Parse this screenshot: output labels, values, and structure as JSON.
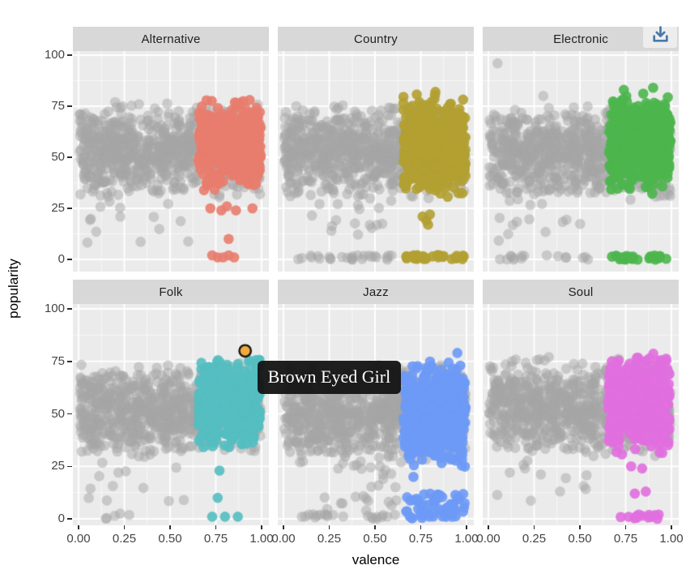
{
  "toolbar": {
    "download_icon_color": "#4779A9"
  },
  "tooltip": {
    "text": "Brown Eyed Girl",
    "bg": "#131313",
    "fg": "#ffffff"
  },
  "chart_data": {
    "type": "scatter",
    "title": "",
    "xlabel": "valence",
    "ylabel": "popularity",
    "xlim": [
      0,
      1
    ],
    "ylim": [
      0,
      100
    ],
    "grid": true,
    "legend": "none",
    "x_ticks": {
      "values": [
        0,
        0.25,
        0.5,
        0.75,
        1
      ],
      "labels": [
        "0.00",
        "0.25",
        "0.50",
        "0.75",
        "1.00"
      ]
    },
    "y_ticks": {
      "values": [
        100,
        75,
        50,
        25,
        0
      ],
      "labels": [
        "100",
        "75",
        "50",
        "25",
        "0"
      ]
    },
    "colors": {
      "panel_bg": "#EBEBEB",
      "strip_bg": "#D8D8D8",
      "grid_major": "#FFFFFF",
      "grid_minor": "#FFFFFF",
      "background_points": "#A6A6A6"
    },
    "facets": [
      {
        "label": "Alternative",
        "color": "#E87D6E",
        "clusters": [
          {
            "kind": "gray",
            "type": "cloud",
            "x": [
              0.005,
              0.995
            ],
            "yc": 53,
            "yh": 24,
            "n": 850
          },
          {
            "kind": "gray",
            "type": "scatter",
            "x": [
              0.02,
              0.62
            ],
            "y": [
              6,
              29
            ],
            "n": 14
          },
          {
            "kind": "gray",
            "type": "points",
            "pts": [
              [
                0.2,
                77
              ],
              [
                0.24,
                75
              ],
              [
                0.33,
                76
              ]
            ]
          },
          {
            "kind": "color",
            "type": "cloud",
            "x": [
              0.655,
              0.995
            ],
            "yc": 56,
            "yh": 24,
            "n": 440
          },
          {
            "kind": "color",
            "type": "points",
            "pts": [
              [
                0.72,
                25
              ],
              [
                0.78,
                24
              ],
              [
                0.81,
                26
              ],
              [
                0.86,
                24
              ],
              [
                0.95,
                25
              ],
              [
                0.82,
                10
              ],
              [
                0.73,
                2
              ],
              [
                0.76,
                1
              ],
              [
                0.79,
                1
              ],
              [
                0.82,
                2
              ],
              [
                0.85,
                1
              ]
            ]
          }
        ]
      },
      {
        "label": "Country",
        "color": "#B3A032",
        "clusters": [
          {
            "kind": "gray",
            "type": "cloud",
            "x": [
              0.005,
              0.995
            ],
            "yc": 53,
            "yh": 24,
            "n": 850
          },
          {
            "kind": "gray",
            "type": "scatter",
            "x": [
              0.1,
              0.62
            ],
            "y": [
              12,
              29
            ],
            "n": 16
          },
          {
            "kind": "gray",
            "type": "line",
            "x": [
              0.04,
              0.6
            ],
            "y": 1,
            "n": 26
          },
          {
            "kind": "gray",
            "type": "points",
            "pts": [
              [
                0.07,
                75
              ]
            ]
          },
          {
            "kind": "color",
            "type": "cloud",
            "x": [
              0.655,
              0.995
            ],
            "yc": 56,
            "yh": 26,
            "n": 460
          },
          {
            "kind": "color",
            "type": "points",
            "pts": [
              [
                0.76,
                21
              ],
              [
                0.78,
                19
              ],
              [
                0.8,
                22
              ],
              [
                0.79,
                17
              ],
              [
                0.83,
                82
              ]
            ]
          },
          {
            "kind": "color",
            "type": "line",
            "x": [
              0.66,
              0.99
            ],
            "y": 1,
            "n": 34
          }
        ]
      },
      {
        "label": "Electronic",
        "color": "#4CB64E",
        "clusters": [
          {
            "kind": "gray",
            "type": "cloud",
            "x": [
              0.005,
              0.995
            ],
            "yc": 52,
            "yh": 24,
            "n": 900
          },
          {
            "kind": "gray",
            "type": "scatter",
            "x": [
              0.05,
              0.6
            ],
            "y": [
              8,
              29
            ],
            "n": 12
          },
          {
            "kind": "gray",
            "type": "line",
            "x": [
              0.05,
              0.55
            ],
            "y": 1,
            "n": 16
          },
          {
            "kind": "gray",
            "type": "points",
            "pts": [
              [
                0.05,
                96
              ],
              [
                0.3,
                80
              ]
            ]
          },
          {
            "kind": "color",
            "type": "cloud",
            "x": [
              0.66,
              0.995
            ],
            "yc": 57,
            "yh": 25,
            "n": 500
          },
          {
            "kind": "color",
            "type": "points",
            "pts": [
              [
                0.9,
                84
              ],
              [
                0.74,
                83
              ]
            ]
          },
          {
            "kind": "color",
            "type": "line",
            "x": [
              0.67,
              0.82
            ],
            "y": 1,
            "n": 14
          },
          {
            "kind": "color",
            "type": "line",
            "x": [
              0.87,
              0.98
            ],
            "y": 1,
            "n": 10
          }
        ]
      },
      {
        "label": "Folk",
        "color": "#54BEC1",
        "clusters": [
          {
            "kind": "gray",
            "type": "cloud",
            "x": [
              0.005,
              0.995
            ],
            "yc": 52,
            "yh": 23,
            "n": 850
          },
          {
            "kind": "gray",
            "type": "scatter",
            "x": [
              0.03,
              0.6
            ],
            "y": [
              8,
              29
            ],
            "n": 12
          },
          {
            "kind": "gray",
            "type": "scatter",
            "x": [
              0.05,
              0.35
            ],
            "y": [
              0,
              3
            ],
            "n": 5
          },
          {
            "kind": "color",
            "type": "cloud",
            "x": [
              0.655,
              0.99
            ],
            "yc": 54,
            "yh": 23,
            "n": 430
          },
          {
            "kind": "color",
            "type": "points",
            "pts": [
              [
                0.77,
                23
              ],
              [
                0.76,
                10
              ],
              [
                0.73,
                1
              ],
              [
                0.8,
                1
              ],
              [
                0.87,
                1
              ]
            ]
          }
        ]
      },
      {
        "label": "Jazz",
        "color": "#6D9AF6",
        "clusters": [
          {
            "kind": "gray",
            "type": "cloud",
            "x": [
              0.005,
              0.995
            ],
            "yc": 50,
            "yh": 24,
            "n": 850
          },
          {
            "kind": "gray",
            "type": "scatter",
            "x": [
              0.2,
              0.63
            ],
            "y": [
              0,
              28
            ],
            "n": 30
          },
          {
            "kind": "gray",
            "type": "line",
            "x": [
              0.1,
              0.62
            ],
            "y": 1,
            "n": 18
          },
          {
            "kind": "color",
            "type": "cloud",
            "x": [
              0.655,
              0.995
            ],
            "yc": 50,
            "yh": 26,
            "n": 470
          },
          {
            "kind": "color",
            "type": "blob",
            "x": [
              0.66,
              0.99
            ],
            "y": [
              0,
              12
            ],
            "n": 60
          },
          {
            "kind": "color",
            "type": "points",
            "pts": [
              [
                0.95,
                79
              ],
              [
                0.71,
                20
              ]
            ]
          }
        ]
      },
      {
        "label": "Soul",
        "color": "#E16FDF",
        "clusters": [
          {
            "kind": "gray",
            "type": "cloud",
            "x": [
              0.005,
              0.995
            ],
            "yc": 53,
            "yh": 24,
            "n": 850
          },
          {
            "kind": "gray",
            "type": "scatter",
            "x": [
              0.03,
              0.62
            ],
            "y": [
              8,
              29
            ],
            "n": 12
          },
          {
            "kind": "gray",
            "type": "points",
            "pts": [
              [
                0.13,
                75
              ],
              [
                0.33,
                77
              ]
            ]
          },
          {
            "kind": "color",
            "type": "cloud",
            "x": [
              0.655,
              0.99
            ],
            "yc": 55,
            "yh": 25,
            "n": 450
          },
          {
            "kind": "color",
            "type": "points",
            "pts": [
              [
                0.78,
                25
              ],
              [
                0.84,
                24
              ],
              [
                0.8,
                12
              ],
              [
                0.86,
                13
              ]
            ]
          },
          {
            "kind": "color",
            "type": "line",
            "x": [
              0.7,
              0.96
            ],
            "y": 1,
            "n": 14
          }
        ]
      }
    ],
    "highlight": {
      "facet": "Folk",
      "x": 0.91,
      "y": 80,
      "fill": "#F2A93B",
      "outline": "#151515",
      "tooltip": "Brown Eyed Girl"
    }
  }
}
